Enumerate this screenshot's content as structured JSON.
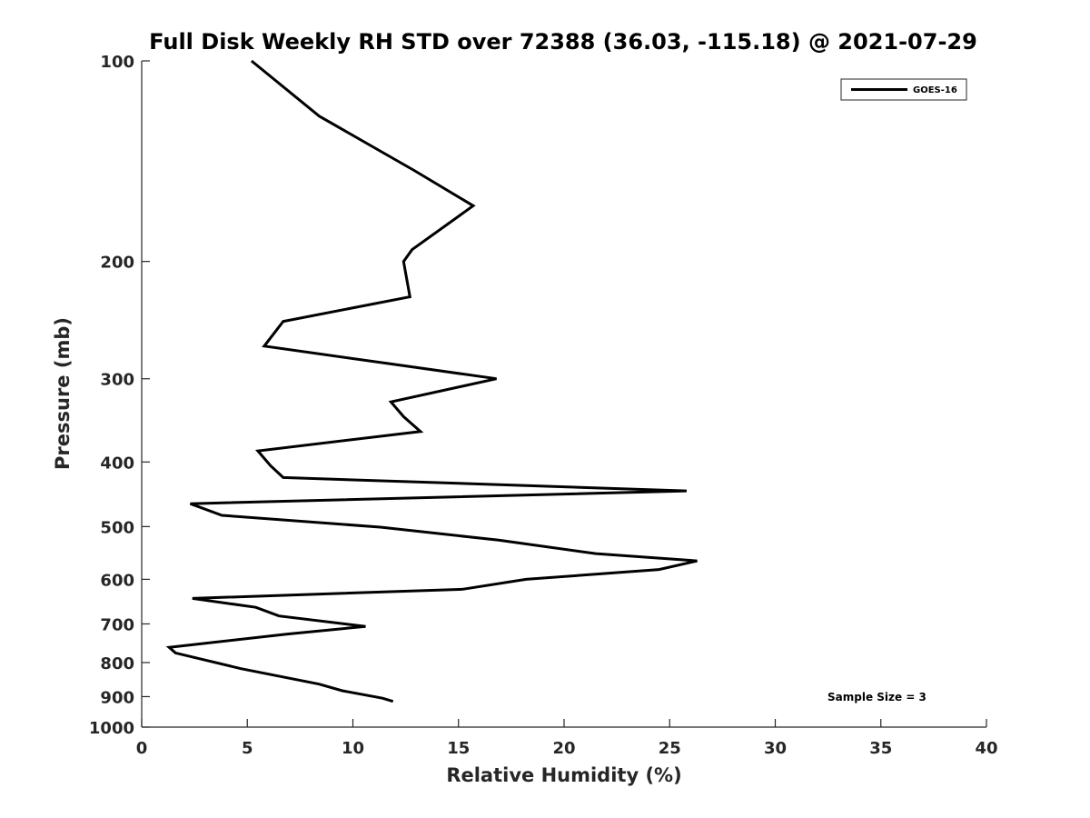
{
  "chart_data": {
    "type": "line",
    "title": "Full Disk Weekly RH STD over 72388 (36.03, -115.18) @ 2021-07-29",
    "xlabel": "Relative Humidity (%)",
    "ylabel": "Pressure (mb)",
    "xlim": [
      0,
      40
    ],
    "ylim": [
      1000,
      100
    ],
    "yscale": "log",
    "y_reversed": true,
    "grid": false,
    "legend_position": "top-right",
    "x_ticks": [
      "0",
      "5",
      "10",
      "15",
      "20",
      "25",
      "30",
      "35",
      "40"
    ],
    "y_ticks": [
      "100",
      "200",
      "300",
      "400",
      "500",
      "600",
      "700",
      "800",
      "900",
      "1000"
    ],
    "series": [
      {
        "name": "GOES-16",
        "color": "#000000",
        "x": [
          5.2,
          8.4,
          12.9,
          15.7,
          12.8,
          12.4,
          12.7,
          6.7,
          5.8,
          11.8,
          16.8,
          11.8,
          12.4,
          13.2,
          5.5,
          6.1,
          6.7,
          25.8,
          2.3,
          3.8,
          11.3,
          16.9,
          21.5,
          26.3,
          24.5,
          18.2,
          15.2,
          2.4,
          5.4,
          6.5,
          10.6,
          6.9,
          1.3,
          1.6,
          4.7,
          8.4,
          9.5,
          11.4,
          11.9
        ],
        "y": [
          100,
          121,
          146,
          165,
          192,
          200,
          226,
          246,
          268,
          285,
          300,
          325,
          342,
          360,
          385,
          405,
          422,
          442,
          462,
          481,
          501,
          524,
          549,
          563,
          580,
          600,
          621,
          641,
          661,
          681,
          706,
          725,
          759,
          774,
          817,
          862,
          882,
          905,
          915
        ]
      }
    ],
    "annotations": [
      "Sample Size = 3"
    ]
  }
}
